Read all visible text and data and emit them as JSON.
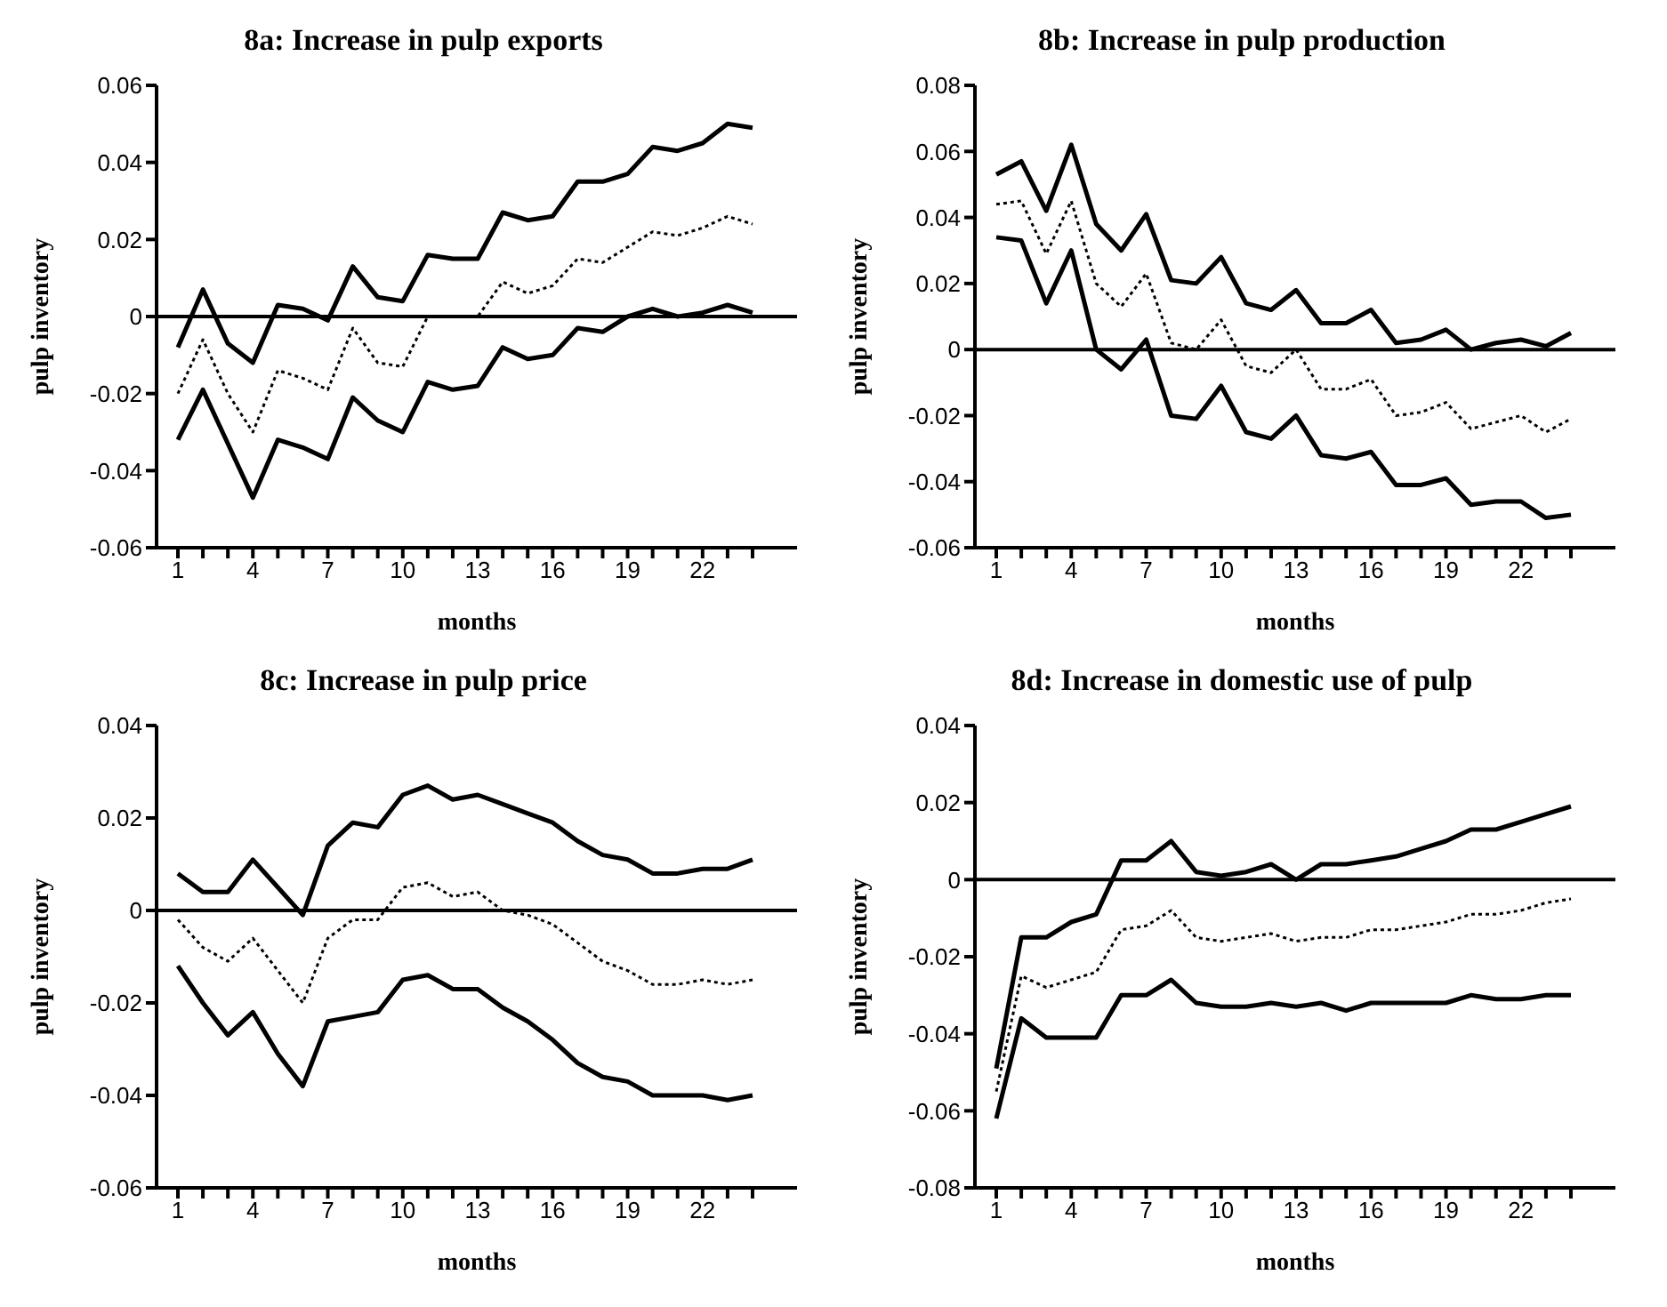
{
  "chart_data": [
    {
      "type": "line",
      "title": "8a: Increase in pulp exports",
      "xlabel": "months",
      "ylabel": "pulp inventory",
      "categories": [
        "1",
        null,
        null,
        "4",
        null,
        null,
        "7",
        null,
        null,
        "10",
        null,
        null,
        "13",
        null,
        null,
        "16",
        null,
        null,
        "19",
        null,
        null,
        "22",
        null,
        null
      ],
      "ylim": [
        -0.06,
        0.06
      ],
      "yticks": [
        -0.06,
        -0.04,
        -0.02,
        0,
        0.02,
        0.04,
        0.06
      ],
      "grid": false,
      "legend": false,
      "marker": "none",
      "ref_lines": [
        {
          "axis": "y",
          "value": 0,
          "color": "#000000",
          "line_style": "solid"
        }
      ],
      "series": [
        {
          "color": "#000000",
          "line_style": "solid",
          "values": [
            -0.008,
            0.007,
            -0.007,
            -0.012,
            0.003,
            0.002,
            -0.001,
            0.013,
            0.005,
            0.004,
            0.016,
            0.015,
            0.015,
            0.027,
            0.025,
            0.026,
            0.035,
            0.035,
            0.037,
            0.044,
            0.043,
            0.045,
            0.05,
            0.049
          ]
        },
        {
          "color": "#000000",
          "line_style": "dotted",
          "values": [
            -0.02,
            -0.006,
            -0.02,
            -0.03,
            -0.014,
            -0.016,
            -0.019,
            -0.003,
            -0.012,
            -0.013,
            0,
            0,
            0,
            0.009,
            0.006,
            0.008,
            0.015,
            0.014,
            0.018,
            0.022,
            0.021,
            0.023,
            0.026,
            0.024
          ]
        },
        {
          "color": "#000000",
          "line_style": "solid",
          "values": [
            -0.032,
            -0.019,
            -0.033,
            -0.047,
            -0.032,
            -0.034,
            -0.037,
            -0.021,
            -0.027,
            -0.03,
            -0.017,
            -0.019,
            -0.018,
            -0.008,
            -0.011,
            -0.01,
            -0.003,
            -0.004,
            0,
            0.002,
            0,
            0.001,
            0.003,
            0.001
          ]
        }
      ]
    },
    {
      "type": "line",
      "title": "8b: Increase in pulp production",
      "xlabel": "months",
      "ylabel": "pulp inventory",
      "categories": [
        "1",
        null,
        null,
        "4",
        null,
        null,
        "7",
        null,
        null,
        "10",
        null,
        null,
        "13",
        null,
        null,
        "16",
        null,
        null,
        "19",
        null,
        null,
        "22",
        null,
        null
      ],
      "ylim": [
        -0.06,
        0.08
      ],
      "yticks": [
        -0.06,
        -0.04,
        -0.02,
        0,
        0.02,
        0.04,
        0.06,
        0.08
      ],
      "grid": false,
      "legend": false,
      "marker": "none",
      "ref_lines": [
        {
          "axis": "y",
          "value": 0,
          "color": "#000000",
          "line_style": "solid"
        }
      ],
      "series": [
        {
          "color": "#000000",
          "line_style": "solid",
          "values": [
            0.053,
            0.057,
            0.042,
            0.062,
            0.038,
            0.03,
            0.041,
            0.021,
            0.02,
            0.028,
            0.014,
            0.012,
            0.018,
            0.008,
            0.008,
            0.012,
            0.002,
            0.003,
            0.006,
            0,
            0.002,
            0.003,
            0.001,
            0.005
          ]
        },
        {
          "color": "#000000",
          "line_style": "dotted",
          "values": [
            0.044,
            0.045,
            0.029,
            0.045,
            0.02,
            0.013,
            0.023,
            0.002,
            0,
            0.009,
            -0.005,
            -0.007,
            0,
            -0.012,
            -0.012,
            -0.009,
            -0.02,
            -0.019,
            -0.016,
            -0.024,
            -0.022,
            -0.02,
            -0.025,
            -0.021
          ]
        },
        {
          "color": "#000000",
          "line_style": "solid",
          "values": [
            0.034,
            0.033,
            0.014,
            0.03,
            0,
            -0.006,
            0.003,
            -0.02,
            -0.021,
            -0.011,
            -0.025,
            -0.027,
            -0.02,
            -0.032,
            -0.033,
            -0.031,
            -0.041,
            -0.041,
            -0.039,
            -0.047,
            -0.046,
            -0.046,
            -0.051,
            -0.05
          ]
        }
      ]
    },
    {
      "type": "line",
      "title": "8c: Increase in pulp price",
      "xlabel": "months",
      "ylabel": "pulp inventory",
      "categories": [
        "1",
        null,
        null,
        "4",
        null,
        null,
        "7",
        null,
        null,
        "10",
        null,
        null,
        "13",
        null,
        null,
        "16",
        null,
        null,
        "19",
        null,
        null,
        "22",
        null,
        null
      ],
      "ylim": [
        -0.06,
        0.04
      ],
      "yticks": [
        -0.06,
        -0.04,
        -0.02,
        0,
        0.02,
        0.04
      ],
      "grid": false,
      "legend": false,
      "marker": "none",
      "ref_lines": [
        {
          "axis": "y",
          "value": 0,
          "color": "#000000",
          "line_style": "solid"
        }
      ],
      "series": [
        {
          "color": "#000000",
          "line_style": "solid",
          "values": [
            0.008,
            0.004,
            0.004,
            0.011,
            0.005,
            -0.001,
            0.014,
            0.019,
            0.018,
            0.025,
            0.027,
            0.024,
            0.025,
            0.023,
            0.021,
            0.019,
            0.015,
            0.012,
            0.011,
            0.008,
            0.008,
            0.009,
            0.009,
            0.011
          ]
        },
        {
          "color": "#000000",
          "line_style": "dotted",
          "values": [
            -0.002,
            -0.008,
            -0.011,
            -0.006,
            -0.013,
            -0.02,
            -0.006,
            -0.002,
            -0.002,
            0.005,
            0.006,
            0.003,
            0.004,
            0,
            -0.001,
            -0.003,
            -0.007,
            -0.011,
            -0.013,
            -0.016,
            -0.016,
            -0.015,
            -0.016,
            -0.015
          ]
        },
        {
          "color": "#000000",
          "line_style": "solid",
          "values": [
            -0.012,
            -0.02,
            -0.027,
            -0.022,
            -0.031,
            -0.038,
            -0.024,
            -0.023,
            -0.022,
            -0.015,
            -0.014,
            -0.017,
            -0.017,
            -0.021,
            -0.024,
            -0.028,
            -0.033,
            -0.036,
            -0.037,
            -0.04,
            -0.04,
            -0.04,
            -0.041,
            -0.04
          ]
        }
      ]
    },
    {
      "type": "line",
      "title": "8d: Increase in domestic use of pulp",
      "xlabel": "months",
      "ylabel": "pulp inventory",
      "categories": [
        "1",
        null,
        null,
        "4",
        null,
        null,
        "7",
        null,
        null,
        "10",
        null,
        null,
        "13",
        null,
        null,
        "16",
        null,
        null,
        "19",
        null,
        null,
        "22",
        null,
        null
      ],
      "ylim": [
        -0.08,
        0.04
      ],
      "yticks": [
        -0.08,
        -0.06,
        -0.04,
        -0.02,
        0,
        0.02,
        0.04
      ],
      "grid": false,
      "legend": false,
      "marker": "none",
      "ref_lines": [
        {
          "axis": "y",
          "value": 0,
          "color": "#000000",
          "line_style": "solid"
        }
      ],
      "series": [
        {
          "color": "#000000",
          "line_style": "solid",
          "values": [
            -0.049,
            -0.015,
            -0.015,
            -0.011,
            -0.009,
            0.005,
            0.005,
            0.01,
            0.002,
            0.001,
            0.002,
            0.004,
            0,
            0.004,
            0.004,
            0.005,
            0.006,
            0.008,
            0.01,
            0.013,
            0.013,
            0.015,
            0.017,
            0.019
          ]
        },
        {
          "color": "#000000",
          "line_style": "dotted",
          "values": [
            -0.055,
            -0.025,
            -0.028,
            -0.026,
            -0.024,
            -0.013,
            -0.012,
            -0.008,
            -0.015,
            -0.016,
            -0.015,
            -0.014,
            -0.016,
            -0.015,
            -0.015,
            -0.013,
            -0.013,
            -0.012,
            -0.011,
            -0.009,
            -0.009,
            -0.008,
            -0.006,
            -0.005
          ]
        },
        {
          "color": "#000000",
          "line_style": "solid",
          "values": [
            -0.062,
            -0.036,
            -0.041,
            -0.041,
            -0.041,
            -0.03,
            -0.03,
            -0.026,
            -0.032,
            -0.033,
            -0.033,
            -0.032,
            -0.033,
            -0.032,
            -0.034,
            -0.032,
            -0.032,
            -0.032,
            -0.032,
            -0.03,
            -0.031,
            -0.031,
            -0.03,
            -0.03
          ]
        }
      ]
    }
  ]
}
